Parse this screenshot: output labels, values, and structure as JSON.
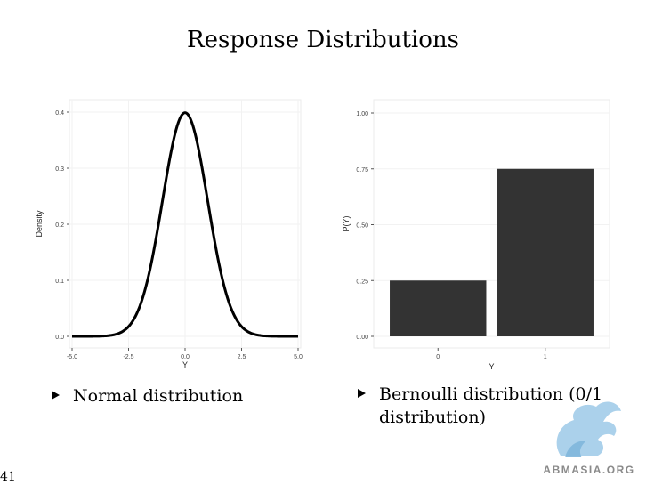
{
  "slide": {
    "title": "Response Distributions",
    "page_number": "41"
  },
  "bullets": [
    {
      "text": "Normal distribution"
    },
    {
      "text": "Bernoulli distribution (0/1 distribution)"
    }
  ],
  "watermark": {
    "text": "ABMASIA.ORG"
  },
  "chart_data": [
    {
      "type": "line",
      "xlabel": "Y",
      "ylabel": "Density",
      "xlim": [
        -5.0,
        5.0
      ],
      "ylim": [
        0.0,
        0.4
      ],
      "x_ticks": [
        "-5.0",
        "-2.5",
        "0.0",
        "2.5",
        "5.0"
      ],
      "y_ticks": [
        "0.0",
        "0.1",
        "0.2",
        "0.3",
        "0.4"
      ],
      "series": [
        {
          "function": "normal_pdf",
          "mean": 0,
          "sd": 1,
          "color": "#000000"
        }
      ],
      "grid": true
    },
    {
      "type": "bar",
      "xlabel": "Y",
      "ylabel": "P(Y)",
      "categories": [
        "0",
        "1"
      ],
      "values": [
        0.25,
        0.75
      ],
      "ylim": [
        0.0,
        1.0
      ],
      "y_ticks": [
        "0.00",
        "0.25",
        "0.50",
        "0.75",
        "1.00"
      ],
      "bar_color": "#333333",
      "grid": true
    }
  ]
}
